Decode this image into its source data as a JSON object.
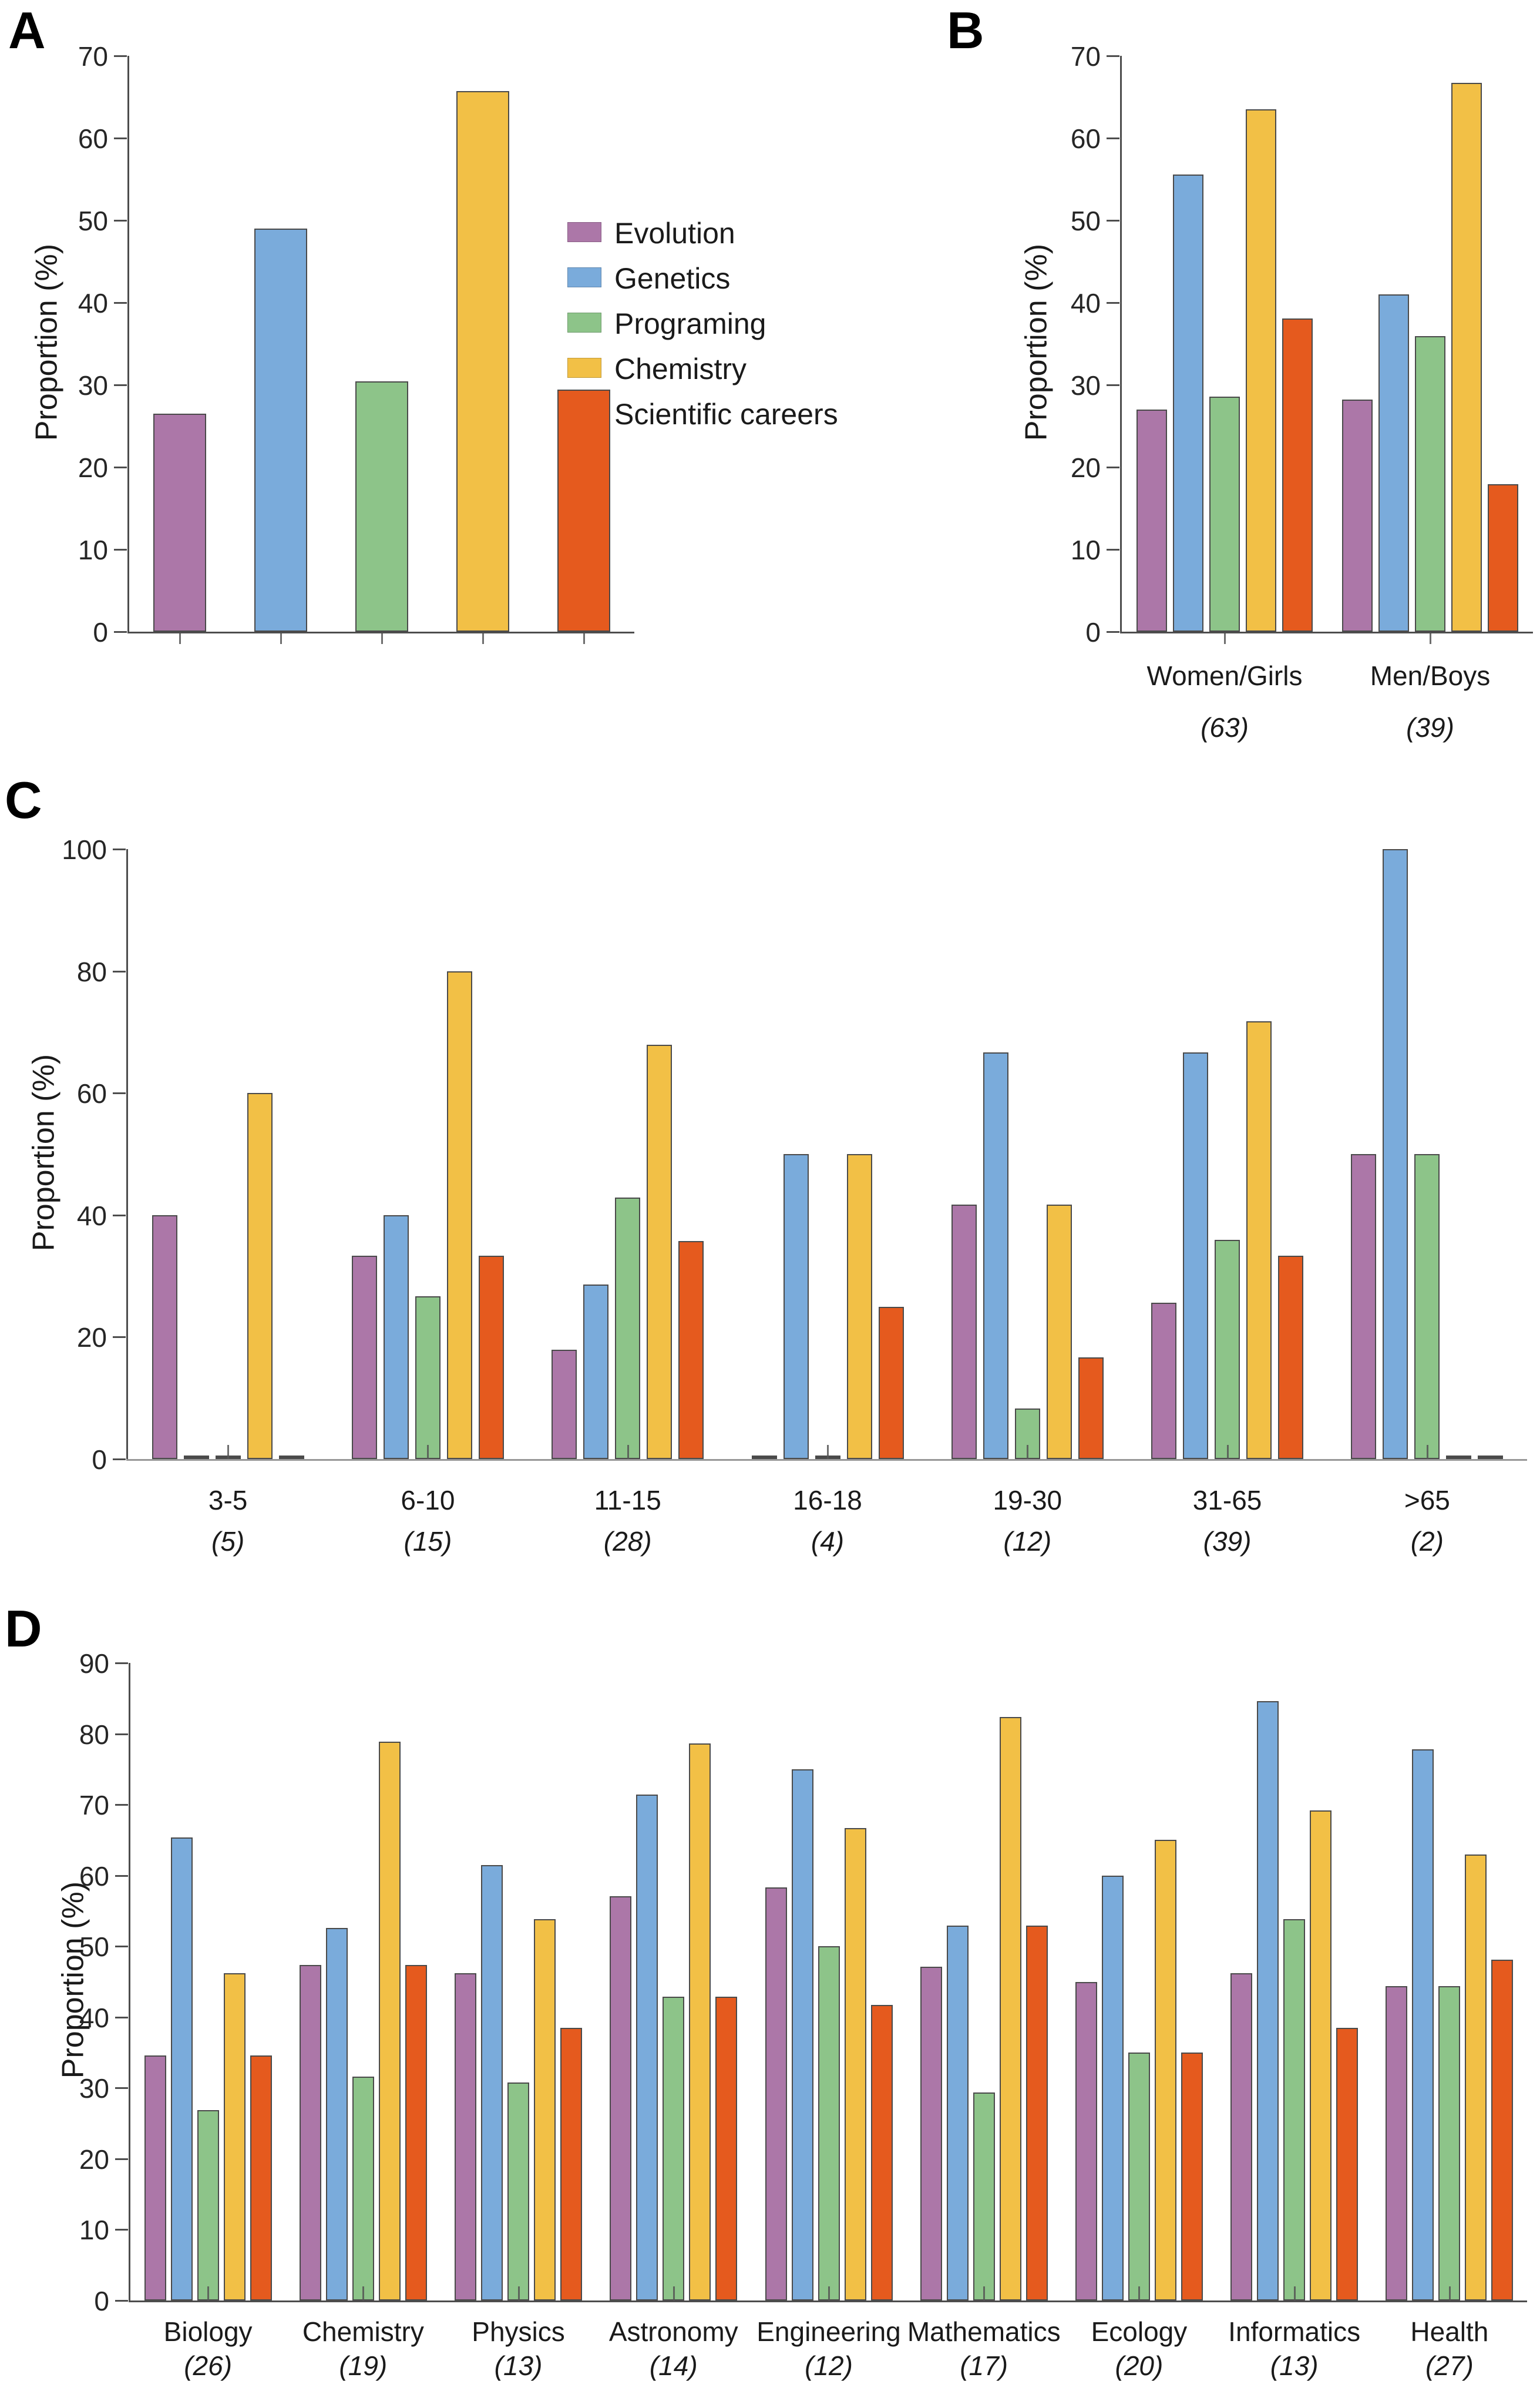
{
  "figure": {
    "background": "#ffffff",
    "bar_outline_color": "#4a4a4a",
    "panel_letters": [
      "A",
      "B",
      "C",
      "D"
    ]
  },
  "chart_data": [
    {
      "panel": "A",
      "type": "bar",
      "title": "",
      "xlabel": "",
      "ylabel": "Proportion (%)",
      "ylim": [
        0,
        70
      ],
      "ytick_step": 10,
      "grid": false,
      "legend_position": "right of plot",
      "categories": [
        ""
      ],
      "counts": [],
      "series": [
        {
          "name": "Evolution",
          "color": "#AC77A8",
          "values": [
            26.5
          ]
        },
        {
          "name": "Genetics",
          "color": "#7AABDB",
          "values": [
            49.0
          ]
        },
        {
          "name": "Programing",
          "color": "#8DC489",
          "values": [
            30.4
          ]
        },
        {
          "name": "Chemistry",
          "color": "#F2C046",
          "values": [
            65.7
          ]
        },
        {
          "name": "Scientific careers",
          "color": "#E55A1E",
          "values": [
            29.4
          ]
        }
      ]
    },
    {
      "panel": "B",
      "type": "bar",
      "title": "",
      "xlabel": "",
      "ylabel": "Proportion (%)",
      "ylim": [
        0,
        70
      ],
      "ytick_step": 10,
      "grid": false,
      "categories": [
        "Women/Girls",
        "Men/Boys"
      ],
      "counts": [
        "(63)",
        "(39)"
      ],
      "series": [
        {
          "name": "Evolution",
          "color": "#AC77A8",
          "values": [
            27.0,
            28.2
          ]
        },
        {
          "name": "Genetics",
          "color": "#7AABDB",
          "values": [
            55.6,
            41.0
          ]
        },
        {
          "name": "Programing",
          "color": "#8DC489",
          "values": [
            28.6,
            35.9
          ]
        },
        {
          "name": "Chemistry",
          "color": "#F2C046",
          "values": [
            63.5,
            66.7
          ]
        },
        {
          "name": "Scientific careers",
          "color": "#E55A1E",
          "values": [
            38.1,
            17.9
          ]
        }
      ]
    },
    {
      "panel": "C",
      "type": "bar",
      "title": "",
      "xlabel": "",
      "ylabel": "Proportion (%)",
      "ylim": [
        0,
        100
      ],
      "ytick_step": 20,
      "grid": false,
      "categories": [
        "3-5",
        "6-10",
        "11-15",
        "16-18",
        "19-30",
        "31-65",
        ">65"
      ],
      "counts": [
        "(5)",
        "(15)",
        "(28)",
        "(4)",
        "(12)",
        "(39)",
        "(2)"
      ],
      "series": [
        {
          "name": "Evolution",
          "color": "#AC77A8",
          "values": [
            40.0,
            33.3,
            17.9,
            0,
            41.7,
            25.6,
            50.0
          ]
        },
        {
          "name": "Genetics",
          "color": "#7AABDB",
          "values": [
            0,
            40.0,
            28.6,
            50.0,
            66.7,
            66.7,
            100.0
          ]
        },
        {
          "name": "Programing",
          "color": "#8DC489",
          "values": [
            0,
            26.7,
            42.9,
            0,
            8.3,
            35.9,
            50.0
          ]
        },
        {
          "name": "Chemistry",
          "color": "#F2C046",
          "values": [
            60.0,
            80.0,
            67.9,
            50.0,
            41.7,
            71.8,
            0
          ]
        },
        {
          "name": "Scientific careers",
          "color": "#E55A1E",
          "values": [
            0,
            33.3,
            35.7,
            25.0,
            16.7,
            33.3,
            0
          ]
        }
      ]
    },
    {
      "panel": "D",
      "type": "bar",
      "title": "",
      "xlabel": "",
      "ylabel": "Proportion (%)",
      "ylim": [
        0,
        90
      ],
      "ytick_step": 10,
      "grid": false,
      "categories": [
        "Biology",
        "Chemistry",
        "Physics",
        "Astronomy",
        "Engineering",
        "Mathematics",
        "Ecology",
        "Informatics",
        "Health"
      ],
      "counts": [
        "(26)",
        "(19)",
        "(13)",
        "(14)",
        "(12)",
        "(17)",
        "(20)",
        "(13)",
        "(27)"
      ],
      "series": [
        {
          "name": "Evolution",
          "color": "#AC77A8",
          "values": [
            34.6,
            47.4,
            46.2,
            57.1,
            58.3,
            47.1,
            45.0,
            46.2,
            44.4
          ]
        },
        {
          "name": "Genetics",
          "color": "#7AABDB",
          "values": [
            65.4,
            52.6,
            61.5,
            71.4,
            75.0,
            52.9,
            60.0,
            84.6,
            77.8
          ]
        },
        {
          "name": "Programing",
          "color": "#8DC489",
          "values": [
            26.9,
            31.6,
            30.8,
            42.9,
            50.0,
            29.4,
            35.0,
            53.8,
            44.4
          ]
        },
        {
          "name": "Chemistry",
          "color": "#F2C046",
          "values": [
            46.2,
            78.9,
            53.8,
            78.6,
            66.7,
            82.4,
            65.0,
            69.2,
            63.0
          ]
        },
        {
          "name": "Scientific careers",
          "color": "#E55A1E",
          "values": [
            34.6,
            47.4,
            38.5,
            42.9,
            41.7,
            52.9,
            35.0,
            38.5,
            48.1
          ]
        }
      ]
    }
  ]
}
